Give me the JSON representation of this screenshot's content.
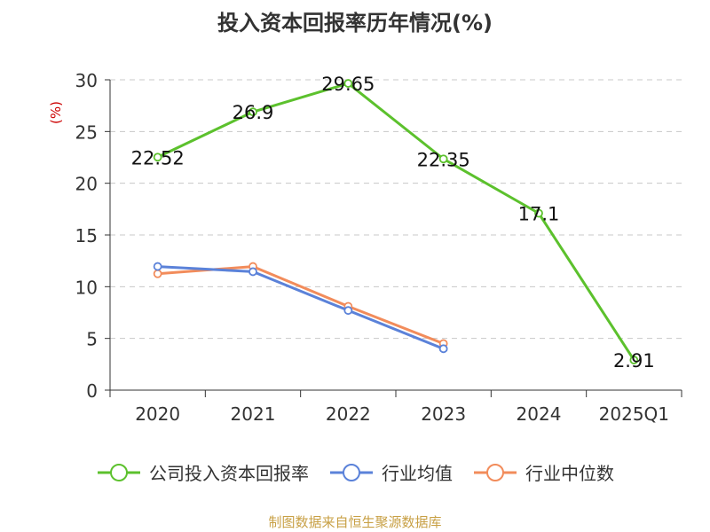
{
  "chart_data": {
    "type": "line",
    "title": "投入资本回报率历年情况(%)",
    "ylabel": "(%)",
    "categories": [
      "2020",
      "2021",
      "2022",
      "2023",
      "2024",
      "2025Q1"
    ],
    "ylim": [
      0,
      30
    ],
    "yticks": [
      0,
      5,
      10,
      15,
      20,
      25,
      30
    ],
    "grid": true,
    "legend_position": "bottom",
    "series": [
      {
        "name": "公司投入资本回报率",
        "color": "#5cc12d",
        "values": [
          22.52,
          26.9,
          29.65,
          22.35,
          17.1,
          2.91
        ],
        "labels": [
          "22.52",
          "26.9",
          "29.65",
          "22.35",
          "17.1",
          "2.91"
        ]
      },
      {
        "name": "行业均值",
        "color": "#5b82d9",
        "values": [
          11.95,
          11.45,
          7.7,
          4.0,
          null,
          null
        ]
      },
      {
        "name": "行业中位数",
        "color": "#f28c5b",
        "values": [
          11.25,
          11.95,
          8.1,
          4.5,
          null,
          null
        ]
      }
    ]
  },
  "source": "制图数据来自恒生聚源数据库"
}
